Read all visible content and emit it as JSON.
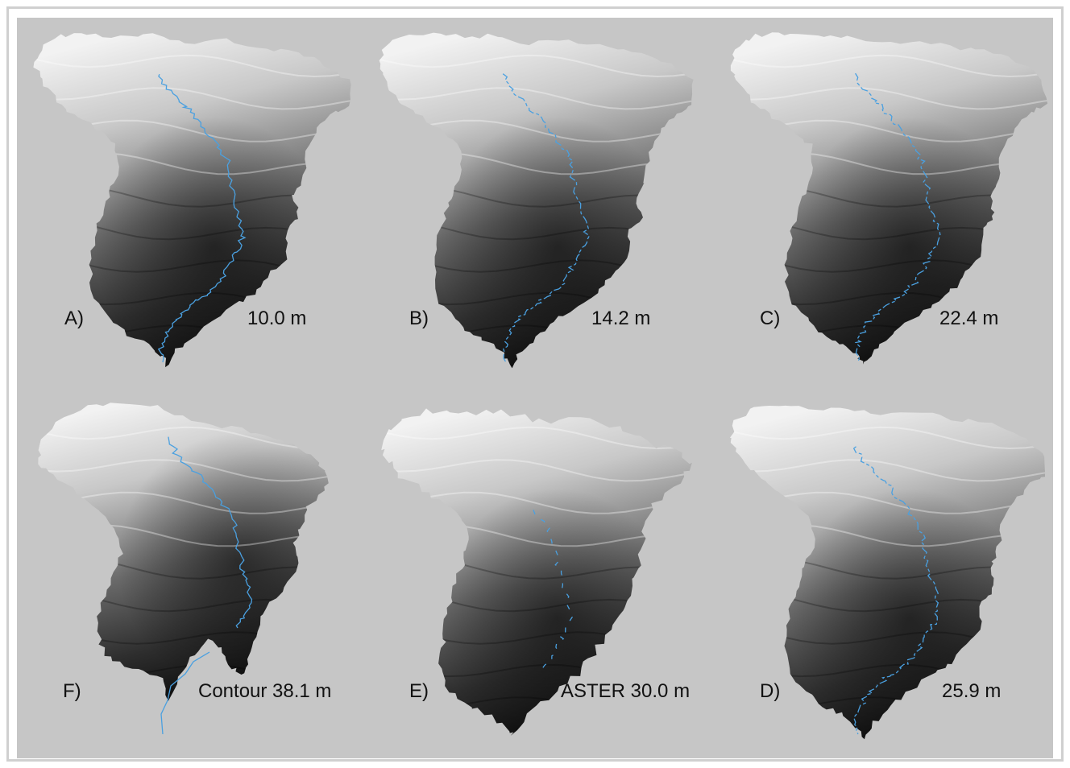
{
  "colors": {
    "background": "#c6c6c6",
    "frame": "#d0d0d0",
    "stream": "#4aa0e0",
    "dem_dark": "#0a0a0a",
    "dem_light": "#f2f2f2"
  },
  "panels": [
    {
      "id": "A",
      "letter": "A)",
      "resolution": "10.0 m",
      "shape": "standard",
      "stream": "full"
    },
    {
      "id": "B",
      "letter": "B)",
      "resolution": "14.2 m",
      "shape": "standard",
      "stream": "dashed"
    },
    {
      "id": "C",
      "letter": "C)",
      "resolution": "22.4 m",
      "shape": "standard",
      "stream": "dashed"
    },
    {
      "id": "F",
      "letter": "F)",
      "resolution": "Contour 38.1 m",
      "shape": "contour",
      "stream": "partial"
    },
    {
      "id": "E",
      "letter": "E)",
      "resolution": "ASTER 30.0 m",
      "shape": "aster",
      "stream": "sparse"
    },
    {
      "id": "D",
      "letter": "D)",
      "resolution": "25.9 m",
      "shape": "standard",
      "stream": "dashed"
    }
  ]
}
